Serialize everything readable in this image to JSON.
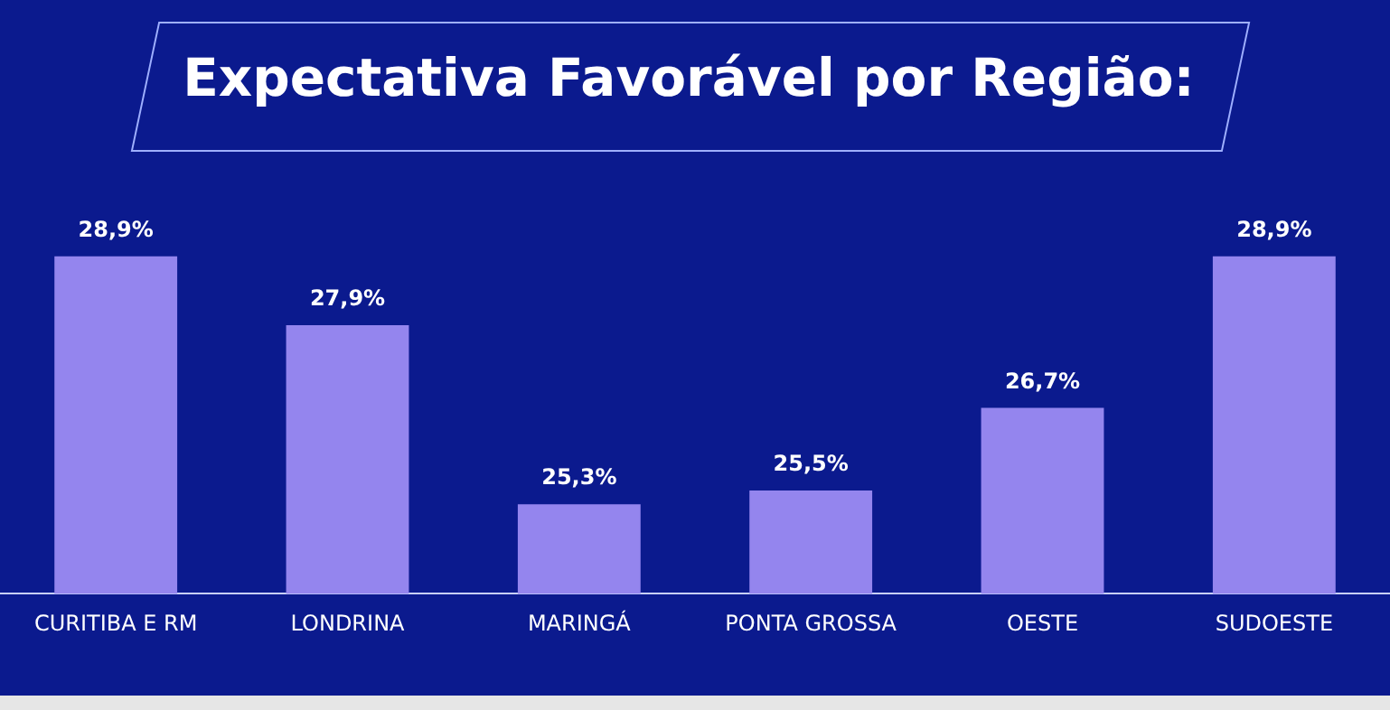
{
  "chart_data": {
    "type": "bar",
    "title": "Expectativa Favorável por Região:",
    "categories": [
      "CURITIBA E RM",
      "LONDRINA",
      "MARINGÁ",
      "PONTA GROSSA",
      "OESTE",
      "SUDOESTE"
    ],
    "values": [
      28.9,
      27.9,
      25.3,
      25.5,
      26.7,
      28.9
    ],
    "value_labels": [
      "28,9%",
      "27,9%",
      "25,3%",
      "25,5%",
      "26,7%",
      "28,9%"
    ],
    "color": "#9485ee",
    "tick_labels": "x"
  }
}
